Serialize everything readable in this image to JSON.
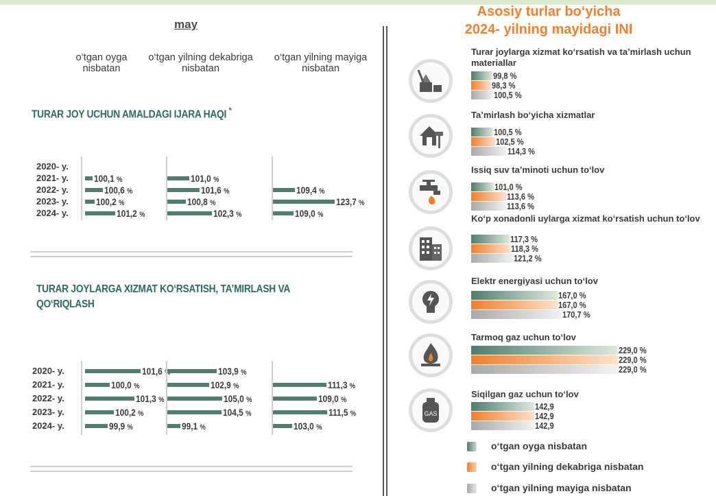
{
  "left": {
    "month": "may",
    "col_headers": [
      "o‘tgan oyga nisbatan",
      "o‘tgan yilning dekabriga nisbatan",
      "o‘tgan yilning mayiga nisbatan"
    ],
    "pct": "%"
  },
  "right": {
    "title_line1": "Asosiy turlar bo‘yicha",
    "title_line2": "2024- yilning mayidagi INI",
    "legend": [
      "o‘tgan oyga nisbatan",
      "o‘tgan yilning dekabriga nisbatan",
      "o‘tgan yilning mayiga nisbatan"
    ],
    "pct": "%"
  },
  "colors": {
    "series1": "#4f7d6e",
    "series2": "#f07f2e",
    "series3": "#a9a9a9",
    "title": "#f07f2e",
    "section": "#2e6a5e"
  },
  "chart_data": [
    {
      "type": "bar",
      "title": "TURAR JOY UCHUN AMALDAGI IJARA HAQI",
      "title_mark": "*",
      "categories": [
        "2020- y.",
        "2021- y.",
        "2022- y.",
        "2023- y.",
        "2024- y."
      ],
      "series": [
        {
          "name": "o‘tgan oyga nisbatan",
          "values": [
            null,
            100.1,
            100.6,
            100.2,
            101.2
          ]
        },
        {
          "name": "o‘tgan yilning dekabriga nisbatan",
          "values": [
            null,
            101.0,
            101.6,
            100.8,
            102.3
          ]
        },
        {
          "name": "o‘tgan yilning mayiga nisbatan",
          "values": [
            null,
            null,
            109.4,
            123.7,
            109.0
          ]
        }
      ]
    },
    {
      "type": "bar",
      "title": "TURAR JOYLARGA XIZMAT KO‘RSATISH, TA’MIRLASH VA QO‘RIQLASH",
      "title_mark": "",
      "categories": [
        "2020- y.",
        "2021- y.",
        "2022- y.",
        "2023- y.",
        "2024- y."
      ],
      "series": [
        {
          "name": "o‘tgan oyga nisbatan",
          "values": [
            101.6,
            100.0,
            101.3,
            100.2,
            99.9
          ]
        },
        {
          "name": "o‘tgan yilning dekabriga nisbatan",
          "values": [
            103.9,
            102.9,
            105.0,
            104.5,
            99.1
          ]
        },
        {
          "name": "o‘tgan yilning mayiga nisbatan",
          "values": [
            null,
            111.3,
            109.0,
            111.5,
            103.0
          ]
        }
      ]
    },
    {
      "type": "bar",
      "title": "Asosiy turlar bo‘yicha 2024- yilning mayidagi INI",
      "categories": [
        "Turar joylarga xizmat ko‘rsatish va ta’mirlash uchun materiallar",
        "Ta’mirlash bo‘yicha xizmatlar",
        "Issiq suv ta’minoti uchun to‘lov",
        "Ko‘p xonadonli uylarga xizmat ko‘rsatish uchun to‘lov",
        "Elektr energiyasi uchun to‘lov",
        "Tarmoq gaz uchun to‘lov",
        "Siqilgan gaz uchun to‘lov"
      ],
      "category_icons": [
        "construction-icon",
        "house-roller-icon",
        "faucet-icon",
        "building-icon",
        "lightbulb-icon",
        "gas-flame-icon",
        "gas-cylinder-icon"
      ],
      "series": [
        {
          "name": "o‘tgan oyga nisbatan",
          "values": [
            99.8,
            100.5,
            101.0,
            117.3,
            167.0,
            229.0,
            142.9
          ]
        },
        {
          "name": "o‘tgan yilning dekabriga nisbatan",
          "values": [
            98.3,
            102.5,
            113.6,
            118.3,
            167.0,
            229.0,
            142.9
          ]
        },
        {
          "name": "o‘tgan yilning mayiga nisbatan",
          "values": [
            100.5,
            114.3,
            113.6,
            121.2,
            170.7,
            229.0,
            142.9
          ]
        }
      ],
      "units_shown": [
        true,
        true,
        true,
        true,
        true,
        true,
        false
      ],
      "legend_position": "bottom"
    }
  ]
}
